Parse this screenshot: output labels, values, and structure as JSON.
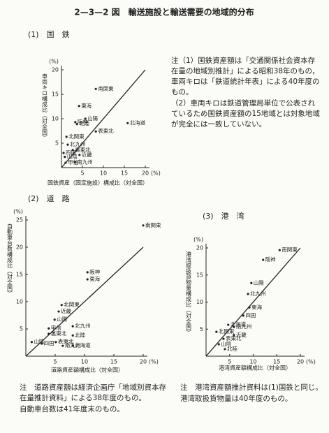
{
  "title": "2—3—2 図　輸送施設と輸送需要の地域的分布",
  "chart_data": [
    {
      "type": "scatter",
      "title": "(1)　国　鉄",
      "x_label": "国鉄資産（固定施設）構成比（対全国）",
      "y_label": "車両キロ構成比（対全国）",
      "x_unit": "(%)",
      "y_unit": "(%)",
      "xlim": [
        0,
        20
      ],
      "ylim": [
        0,
        20
      ],
      "xticks": [
        5,
        10,
        15,
        20
      ],
      "yticks": [
        5,
        10,
        15,
        20
      ],
      "diagonal": true,
      "point_labels": [
        "南関東",
        "東海",
        "山陽",
        "阪神",
        "北陸",
        "北海道",
        "表東北",
        "北関東",
        "北九州",
        "裏東北",
        "近畿",
        "四国",
        "山陰",
        "甲信",
        "南九州"
      ],
      "x": [
        8.2,
        4.2,
        5.7,
        3.3,
        3.7,
        15.8,
        8.2,
        1.2,
        1.5,
        2.7,
        4.3,
        0.5,
        0.8,
        1.0,
        3.2
      ],
      "values": [
        16.1,
        12.6,
        10.0,
        9.3,
        8.9,
        9.1,
        7.4,
        6.3,
        4.7,
        3.6,
        2.6,
        3.0,
        2.2,
        1.0,
        1.1
      ],
      "notes": [
        "注（1）国鉄資産額は「交通関係社会資本存在量の地域別推計」による昭和38年のもの，車両キロは「鉄道統計年表」による40年度のもの。",
        "（2）車両キロは鉄道管理局単位で公表されているため国鉄資産額の15地域とは対象地域が完全には一致していない。"
      ]
    },
    {
      "type": "scatter",
      "title": "(2)　道　路",
      "x_label": "道路資産額構成比（対全国）",
      "y_label": "自動車台数構成比（対全国）",
      "x_unit": "(%)",
      "y_unit": "(%)",
      "xlim": [
        0,
        20
      ],
      "ylim": [
        0,
        25
      ],
      "xticks": [
        5,
        10,
        15,
        20
      ],
      "yticks": [
        5,
        10,
        15,
        20,
        25
      ],
      "diagonal": true,
      "point_labels": [
        "南関東",
        "阪神",
        "東海",
        "北関東",
        "近畿",
        "山陽",
        "北九州",
        "北陸",
        "甲信",
        "裏東北",
        "山陰",
        "四国",
        "表東北",
        "南九州",
        "北海道"
      ],
      "x": [
        20,
        10.5,
        10.5,
        6.1,
        5.6,
        4.9,
        8,
        8,
        3.9,
        3.9,
        1,
        2.7,
        5.1,
        6.3,
        8
      ],
      "values": [
        24,
        15.4,
        14.1,
        9.4,
        8.2,
        6.7,
        5.5,
        3.8,
        5.1,
        4.1,
        2.6,
        2.3,
        2.6,
        1.9,
        1.9
      ],
      "notes": [
        "注　道路資産額は経済企画庁「地域別資本存在量推計資料」による38年度のもの。",
        "自動車台数は41年度末のもの。"
      ]
    },
    {
      "type": "scatter",
      "title": "(3)　港　湾",
      "x_label": "港湾資産額構成比（対全国）",
      "y_label": "港湾取扱貨物量構成比（対全国）",
      "x_unit": "(%)",
      "y_unit": "(%)",
      "xlim": [
        0,
        20
      ],
      "ylim": [
        0,
        20
      ],
      "xticks": [
        5,
        10,
        15,
        20
      ],
      "yticks": [
        5,
        10,
        15,
        20
      ],
      "diagonal": true,
      "point_labels": [
        "南関東",
        "阪神",
        "山陽",
        "北九州",
        "東海",
        "四国",
        "北海道",
        "南九州",
        "北関東",
        "近畿",
        "表東北",
        "山陰",
        "北陸"
      ],
      "x": [
        15.6,
        12.1,
        9.6,
        8.9,
        9.2,
        7.9,
        4.7,
        5.9,
        2.2,
        5.9,
        3.7,
        2.7,
        4
      ],
      "values": [
        19.6,
        17.8,
        13.5,
        11.5,
        9,
        7.5,
        5.8,
        5.4,
        4.5,
        3.9,
        3.2,
        2.2,
        1.3
      ],
      "notes": [
        "注　港湾資産額推計資料は(1)国鉄と同じ。",
        "港湾取扱貨物量は40年度のもの。"
      ]
    }
  ]
}
